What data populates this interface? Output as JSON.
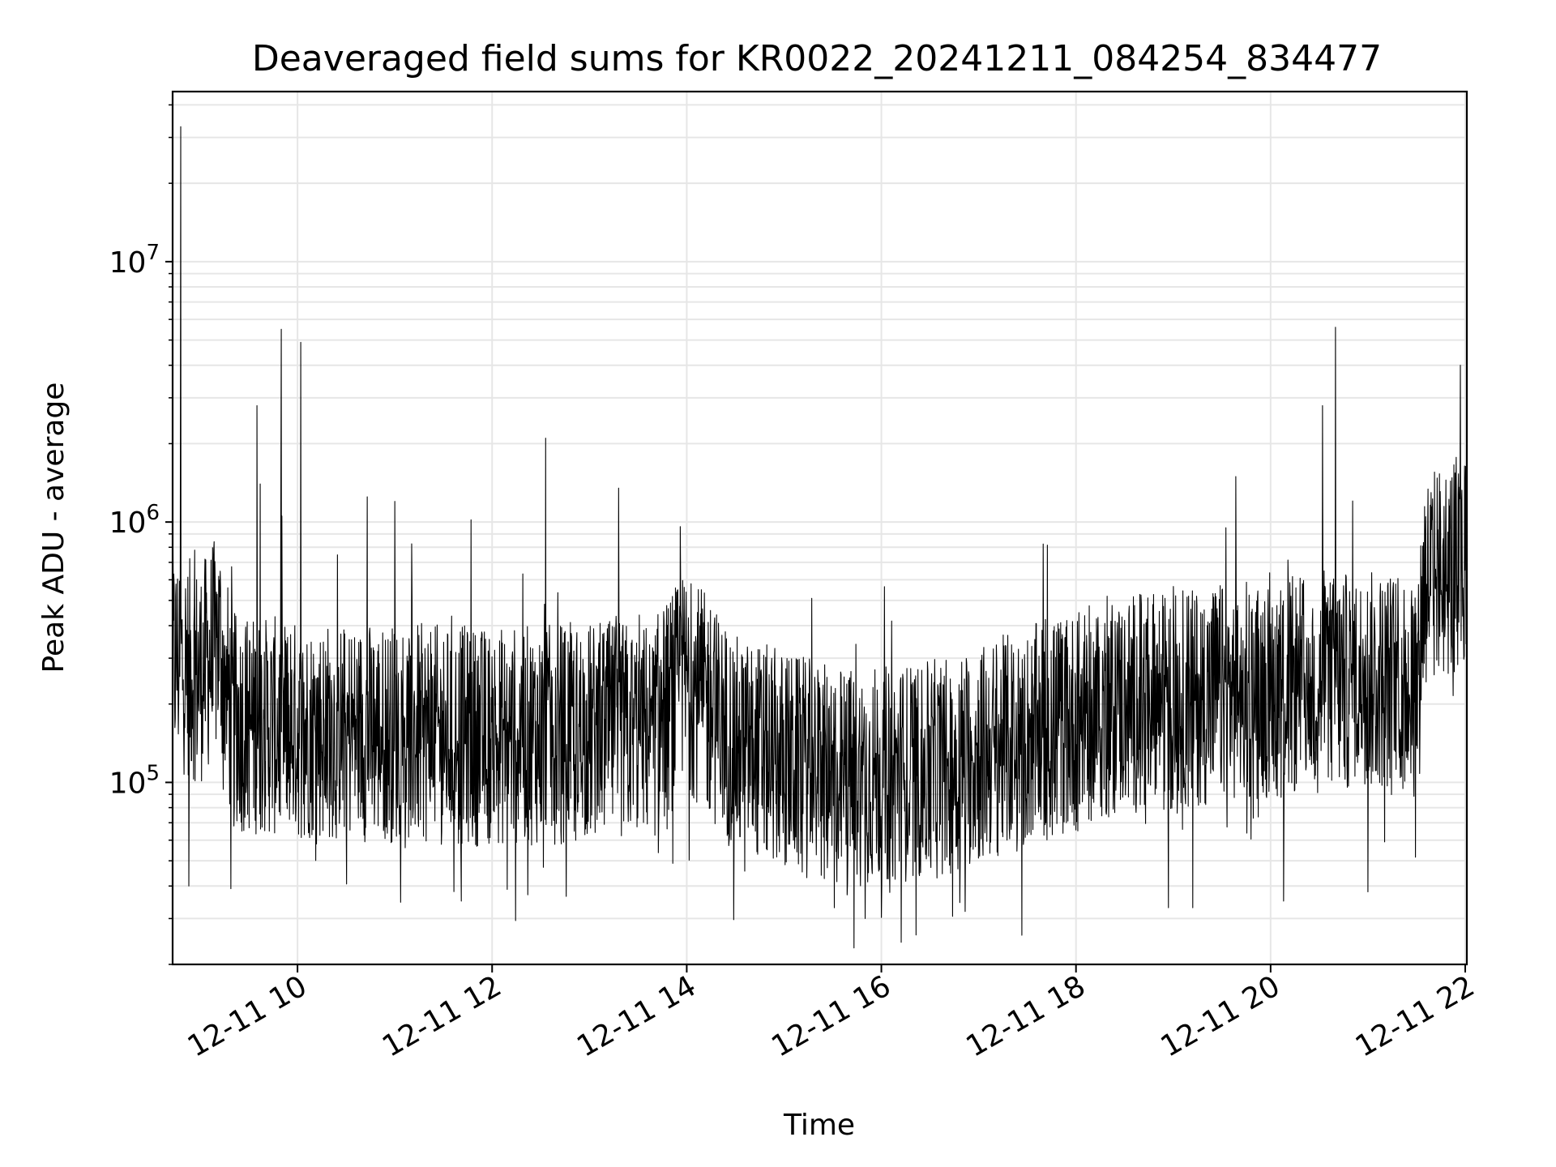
{
  "chart_data": {
    "type": "line",
    "title": "Deaveraged field sums for KR0022_20241211_084254_834477",
    "xlabel": "Time",
    "ylabel": "Peak ADU - average",
    "x_start": "2024-12-11 08:43",
    "x_end": "2024-12-11 22:01",
    "xlim": [
      "2024-12-11 08:43",
      "2024-12-11 22:01"
    ],
    "ylim": [
      20000,
      45000000
    ],
    "yscale": "log",
    "grid": true,
    "line_color": "#000000",
    "grid_color": "#e6e6e6",
    "x_ticks": [
      {
        "value": "2024-12-11 10:00",
        "label": "12-11 10"
      },
      {
        "value": "2024-12-11 12:00",
        "label": "12-11 12"
      },
      {
        "value": "2024-12-11 14:00",
        "label": "12-11 14"
      },
      {
        "value": "2024-12-11 16:00",
        "label": "12-11 16"
      },
      {
        "value": "2024-12-11 18:00",
        "label": "12-11 18"
      },
      {
        "value": "2024-12-11 20:00",
        "label": "12-11 20"
      },
      {
        "value": "2024-12-11 22:00",
        "label": "12-11 22"
      }
    ],
    "y_ticks": [
      {
        "value": 100000,
        "base": "10",
        "exp": "5"
      },
      {
        "value": 1000000,
        "base": "10",
        "exp": "6"
      },
      {
        "value": 10000000,
        "base": "10",
        "exp": "7"
      }
    ],
    "baseline": [
      [
        "2024-12-11 08:43",
        300000
      ],
      [
        "2024-12-11 09:00",
        260000
      ],
      [
        "2024-12-11 09:12",
        350000
      ],
      [
        "2024-12-11 09:20",
        170000
      ],
      [
        "2024-12-11 10:00",
        160000
      ],
      [
        "2024-12-11 12:00",
        150000
      ],
      [
        "2024-12-11 13:40",
        160000
      ],
      [
        "2024-12-11 14:00",
        250000
      ],
      [
        "2024-12-11 14:30",
        140000
      ],
      [
        "2024-12-11 15:30",
        105000
      ],
      [
        "2024-12-11 16:30",
        110000
      ],
      [
        "2024-12-11 17:30",
        150000
      ],
      [
        "2024-12-11 18:30",
        200000
      ],
      [
        "2024-12-11 19:30",
        220000
      ],
      [
        "2024-12-11 20:30",
        240000
      ],
      [
        "2024-12-11 21:30",
        250000
      ],
      [
        "2024-12-11 21:35",
        600000
      ],
      [
        "2024-12-11 22:01",
        700000
      ]
    ],
    "spikes": [
      [
        "2024-12-11 08:48",
        33000000
      ],
      [
        "2024-12-11 09:35",
        2800000
      ],
      [
        "2024-12-11 09:37",
        1400000
      ],
      [
        "2024-12-11 09:50",
        5500000
      ],
      [
        "2024-12-11 10:02",
        4900000
      ],
      [
        "2024-12-11 10:43",
        1250000
      ],
      [
        "2024-12-11 11:00",
        1200000
      ],
      [
        "2024-12-11 11:47",
        1020000
      ],
      [
        "2024-12-11 12:33",
        2100000
      ],
      [
        "2024-12-11 13:18",
        1350000
      ],
      [
        "2024-12-11 13:56",
        960000
      ],
      [
        "2024-12-11 20:32",
        2800000
      ],
      [
        "2024-12-11 20:40",
        5600000
      ],
      [
        "2024-12-11 21:57",
        4000000
      ]
    ],
    "dips": [
      [
        "2024-12-11 08:53",
        40000
      ],
      [
        "2024-12-11 11:41",
        35000
      ],
      [
        "2024-12-11 12:22",
        37000
      ],
      [
        "2024-12-11 15:31",
        33000
      ],
      [
        "2024-12-11 15:50",
        30000
      ],
      [
        "2024-12-11 18:57",
        33000
      ],
      [
        "2024-12-11 19:12",
        33000
      ],
      [
        "2024-12-11 20:08",
        35000
      ],
      [
        "2024-12-11 21:00",
        38000
      ]
    ]
  }
}
